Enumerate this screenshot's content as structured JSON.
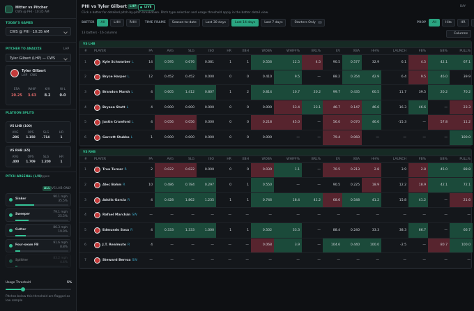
{
  "sidebar": {
    "app_title": "Hitter vs Pitcher",
    "app_subtitle": "CWS @ PHI · 10:35 AM",
    "games_label": "TODAY'S GAMES",
    "game_select": "CWS @ PHI · 10:35 AM",
    "pitcher_label": "PITCHER TO ANALYZE",
    "pitcher_hand": "LHP",
    "pitcher_select": "Tyler Gilbert (LHP) — CWS",
    "pitcher": {
      "name": "Tyler Gilbert",
      "hand": "LHP",
      "team": "CWS",
      "stats": [
        {
          "label": "ERA",
          "value": "20.25"
        },
        {
          "label": "WHIP",
          "value": "3.63"
        },
        {
          "label": "K/9",
          "value": "8.2"
        },
        {
          "label": "W-L",
          "value": "0-0"
        }
      ]
    },
    "platoon_label": "PLATOON SPLITS",
    "splits": [
      {
        "label": "VS LHB (100)",
        "stats": [
          {
            "label": "AVG",
            "value": ".286"
          },
          {
            "label": "OPS",
            "value": "1.158"
          },
          {
            "label": "SLG",
            "value": ".714"
          },
          {
            "label": "HR",
            "value": "1"
          }
        ]
      },
      {
        "label": "VS RHB (65)",
        "stats": [
          {
            "label": "AVG",
            "value": ".400"
          },
          {
            "label": "OPS",
            "value": "1.709"
          },
          {
            "label": "SLG",
            "value": "1.200"
          },
          {
            "label": "HR",
            "value": "1"
          }
        ]
      }
    ],
    "arsenal_label": "PITCH ARSENAL (L/H)",
    "arsenal_count": "5 types",
    "arsenal_filters": [
      "ALL",
      "VS LHB ONLY"
    ],
    "pitches": [
      {
        "name": "Sinker",
        "velo": "90.1 mph",
        "usage": 35.5,
        "usage_label": "35.5%"
      },
      {
        "name": "Sweeper",
        "velo": "79.1 mph",
        "usage": 25.5,
        "usage_label": "25.5%"
      },
      {
        "name": "Cutter",
        "velo": "86.3 mph",
        "usage": 19.9,
        "usage_label": "19.9%"
      },
      {
        "name": "Four-seam FB",
        "velo": "91.6 mph",
        "usage": 8.8,
        "usage_label": "8.8%"
      },
      {
        "name": "Splitter",
        "velo": "83.2 mph",
        "usage": 4.4,
        "usage_label": "4.4%"
      }
    ],
    "threshold_label": "Usage Threshold",
    "threshold_value": "5%",
    "threshold_note": "Pitches below this threshold are flagged as low sample"
  },
  "header": {
    "title": "PHI vs Tyler Gilbert",
    "hand": "LHP",
    "live": "LIVE",
    "corner": "BAY",
    "subtitle": "Click a batter for detailed pitch-by-pitch breakdown. Pitch type selection and usage threshold apply in the batter detail view."
  },
  "filters": {
    "batter_label": "BATTER",
    "batter_options": [
      "All",
      "LHH",
      "RHH"
    ],
    "batter_active": 0,
    "time_label": "TIME FRAME",
    "time_options": [
      "Season-to-date",
      "Last 30 days",
      "Last 14 days",
      "Last 7 days"
    ],
    "time_active": 2,
    "starters": "Starters Only",
    "prop_label": "PROP",
    "prop_options": [
      "All",
      "Hits",
      "HR",
      "K"
    ],
    "prop_active": 0
  },
  "summary": "13 batters · 16 columns",
  "columns_button": "Columns",
  "table": {
    "columns": [
      "#",
      "PLAYER",
      "PA",
      "AVG",
      "SLG",
      "ISO",
      "HR",
      "XBH",
      "WOBA",
      "WHIFF%",
      "BRL%",
      "EV",
      "XBA",
      "HH%",
      "LAUNCH",
      "FB%",
      "GB%",
      "PULL%"
    ],
    "heat_colors": {
      "g": "#1b4a3a",
      "r": "#57242e"
    },
    "groups": [
      {
        "label": "VS LHB",
        "rows": [
          {
            "rank": "1",
            "name": "Kyle Schwarber",
            "hand": "L",
            "cells": [
              "14",
              "0.595",
              "0.676",
              "0.081",
              "1",
              "1",
              "0.556",
              "12.5",
              "4.5",
              "90.5",
              "0.577",
              "32.9",
              "6.1",
              "4.5",
              "42.1",
              "67.1"
            ],
            "heat": [
              null,
              "g",
              "g",
              null,
              null,
              null,
              "g",
              "g",
              "r",
              null,
              "g",
              null,
              null,
              "r",
              "g",
              "g"
            ]
          },
          {
            "rank": "2",
            "name": "Bryce Harper",
            "hand": "L",
            "cells": [
              "12",
              "0.452",
              "0.452",
              "0.000",
              "0",
              "0",
              "0.410",
              "9.5",
              "—",
              "88.2",
              "0.354",
              "42.9",
              "6.4",
              "9.5",
              "46.0",
              "39.9"
            ],
            "heat": [
              null,
              null,
              null,
              null,
              null,
              null,
              null,
              "g",
              null,
              null,
              "g",
              "g",
              null,
              "r",
              "g",
              null
            ]
          },
          {
            "rank": "3",
            "name": "Brandon Marsh",
            "hand": "L",
            "cells": [
              "4",
              "0.605",
              "1.412",
              "0.807",
              "1",
              "2",
              "0.814",
              "10.7",
              "20.2",
              "99.7",
              "0.435",
              "60.5",
              "11.7",
              "39.5",
              "20.2",
              "70.2"
            ],
            "heat": [
              null,
              "g",
              "g",
              "g",
              null,
              null,
              "g",
              "g",
              "g",
              "g",
              "g",
              "g",
              null,
              null,
              "g",
              "g"
            ]
          },
          {
            "rank": "4",
            "name": "Bryson Stott",
            "hand": "L",
            "cells": [
              "4",
              "0.000",
              "0.000",
              "0.000",
              "0",
              "0",
              "0.000",
              "53.4",
              "23.1",
              "46.7",
              "0.147",
              "46.6",
              "16.3",
              "46.6",
              "—",
              "23.3"
            ],
            "heat": [
              null,
              null,
              null,
              null,
              null,
              null,
              null,
              "r",
              "g",
              "r",
              "r",
              "g",
              null,
              "g",
              null,
              "r"
            ]
          },
          {
            "rank": "5",
            "name": "Justin Crawford",
            "hand": "L",
            "cells": [
              "4",
              "0.056",
              "0.056",
              "0.000",
              "0",
              "0",
              "0.218",
              "45.0",
              "—",
              "56.0",
              "0.070",
              "46.6",
              "-15.3",
              "—",
              "57.8",
              "11.2"
            ],
            "heat": [
              null,
              "r",
              "r",
              null,
              null,
              null,
              "r",
              "r",
              null,
              "r",
              "r",
              "g",
              null,
              null,
              "r",
              "r"
            ]
          },
          {
            "rank": "6",
            "name": "Garrett Stubbs",
            "hand": "L",
            "cells": [
              "1",
              "0.000",
              "0.000",
              "0.000",
              "0",
              "0",
              "0.000",
              "—",
              "—",
              "79.4",
              "0.060",
              "—",
              "—",
              "—",
              "—",
              "100.0"
            ],
            "heat": [
              null,
              null,
              null,
              null,
              null,
              null,
              null,
              null,
              null,
              "r",
              "r",
              null,
              null,
              null,
              null,
              "g"
            ]
          }
        ]
      },
      {
        "label": "VS RHB",
        "rows": [
          {
            "rank": "1",
            "name": "Trea Turner",
            "hand": "R",
            "cells": [
              "2",
              "0.022",
              "0.022",
              "0.000",
              "0",
              "0",
              "0.039",
              "1.1",
              "—",
              "70.5",
              "0.213",
              "2.8",
              "3.9",
              "2.8",
              "45.0",
              "88.8"
            ],
            "heat": [
              null,
              "r",
              "r",
              null,
              null,
              null,
              "r",
              "g",
              null,
              "r",
              "r",
              "r",
              null,
              "r",
              "g",
              "g"
            ]
          },
          {
            "rank": "2",
            "name": "Alec Bohm",
            "hand": "R",
            "cells": [
              "10",
              "0.486",
              "0.784",
              "0.297",
              "0",
              "1",
              "0.550",
              "—",
              "—",
              "90.5",
              "0.225",
              "18.9",
              "12.2",
              "18.9",
              "42.1",
              "72.1"
            ],
            "heat": [
              null,
              "g",
              "g",
              "g",
              null,
              null,
              "g",
              null,
              null,
              null,
              null,
              "r",
              null,
              "r",
              "g",
              "g"
            ]
          },
          {
            "rank": "3",
            "name": "Adolis Garcia",
            "hand": "R",
            "cells": [
              "4",
              "0.428",
              "1.862",
              "1.235",
              "1",
              "1",
              "0.746",
              "18.4",
              "41.2",
              "68.6",
              "0.548",
              "41.2",
              "15.8",
              "41.2",
              "—",
              "21.6"
            ],
            "heat": [
              null,
              "g",
              "g",
              "g",
              null,
              null,
              "g",
              "g",
              "g",
              "r",
              "g",
              "g",
              null,
              "g",
              null,
              "r"
            ]
          },
          {
            "rank": "4",
            "name": "Rafael Marchán",
            "hand": "SW",
            "cells": [
              "—",
              "—",
              "—",
              "—",
              "—",
              "—",
              "—",
              "—",
              "—",
              "—",
              "—",
              "—",
              "—",
              "—",
              "—",
              "—"
            ],
            "heat": [
              null,
              null,
              null,
              null,
              null,
              null,
              null,
              null,
              null,
              null,
              null,
              null,
              null,
              null,
              null,
              null
            ]
          },
          {
            "rank": "5",
            "name": "Edmundo Sosa",
            "hand": "R",
            "cells": [
              "4",
              "0.333",
              "1.333",
              "1.000",
              "1",
              "1",
              "0.502",
              "33.3",
              "—",
              "88.4",
              "0.240",
              "33.3",
              "38.3",
              "66.7",
              "—",
              "66.7"
            ],
            "heat": [
              null,
              "g",
              "g",
              "g",
              null,
              null,
              "g",
              "g",
              null,
              null,
              null,
              null,
              null,
              "g",
              null,
              "g"
            ]
          },
          {
            "rank": "6",
            "name": "J.T. Realmuto",
            "hand": "R",
            "cells": [
              "4",
              "—",
              "—",
              "—",
              "—",
              "—",
              "0.068",
              "3.9",
              "—",
              "104.6",
              "0.440",
              "100.0",
              "-2.5",
              "—",
              "80.7",
              "100.0"
            ],
            "heat": [
              null,
              null,
              null,
              null,
              null,
              null,
              "r",
              "g",
              null,
              "g",
              "g",
              "g",
              null,
              null,
              "r",
              "g"
            ]
          },
          {
            "rank": "7",
            "name": "Steward Berroa",
            "hand": "SW",
            "cells": [
              "—",
              "—",
              "—",
              "—",
              "—",
              "—",
              "—",
              "—",
              "—",
              "—",
              "—",
              "—",
              "—",
              "—",
              "—",
              "—"
            ],
            "heat": [
              null,
              null,
              null,
              null,
              null,
              null,
              null,
              null,
              null,
              null,
              null,
              null,
              null,
              null,
              null,
              null
            ]
          }
        ]
      }
    ]
  }
}
